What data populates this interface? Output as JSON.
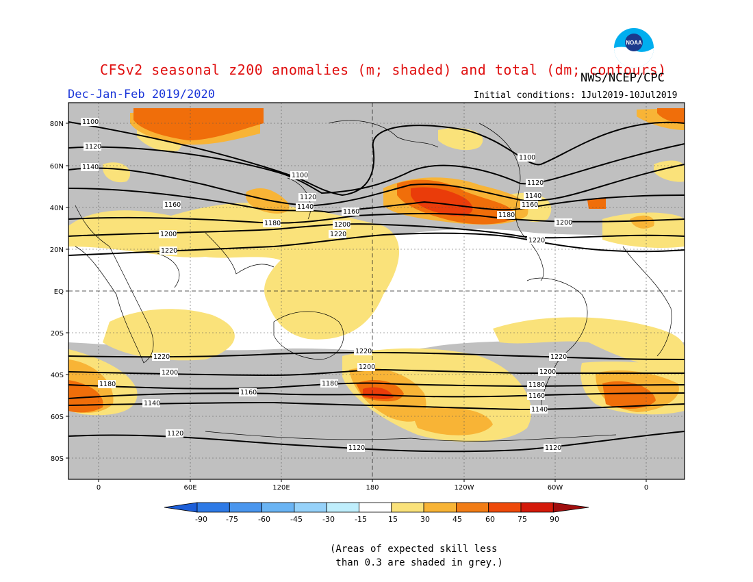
{
  "header": {
    "title": "CFSv2 seasonal z200 anomalies (m; shaded) and total (dm; contours)",
    "period": "Dec-Jan-Feb 2019/2020",
    "agency": "NWS/NCEP/CPC",
    "initial_conditions": "Initial conditions: 1Jul2019-10Jul2019",
    "logo_text": "NOAA"
  },
  "map": {
    "lat_labels": [
      "80N",
      "60N",
      "40N",
      "20N",
      "EQ",
      "20S",
      "40S",
      "60S",
      "80S"
    ],
    "lon_labels": [
      "0",
      "60E",
      "120E",
      "180",
      "120W",
      "60W",
      "0"
    ],
    "contour_labels": [
      "1100",
      "1120",
      "1140",
      "1160",
      "1180",
      "1200",
      "1220"
    ],
    "colors": {
      "skill_grey": "#c0c0c0",
      "anom_15_30": "#fae27a",
      "anom_30_45": "#f8b436",
      "anom_45_60": "#f06e0a",
      "anom_60_75": "#ea3c0a",
      "contour": "#000000"
    }
  },
  "colorbar": {
    "labels": [
      "-90",
      "-75",
      "-60",
      "-45",
      "-30",
      "-15",
      "15",
      "30",
      "45",
      "60",
      "75",
      "90"
    ],
    "colors": [
      "#1c5ed8",
      "#2e7ae6",
      "#4a96ee",
      "#6ab4f4",
      "#96d2fa",
      "#bfeefc",
      "#ffffff",
      "#fae27a",
      "#f8b436",
      "#f27d16",
      "#ee4a0a",
      "#d41a0a",
      "#a00e0e"
    ]
  },
  "note": "(Areas of expected skill less\n than 0.3 are shaded in grey.)"
}
